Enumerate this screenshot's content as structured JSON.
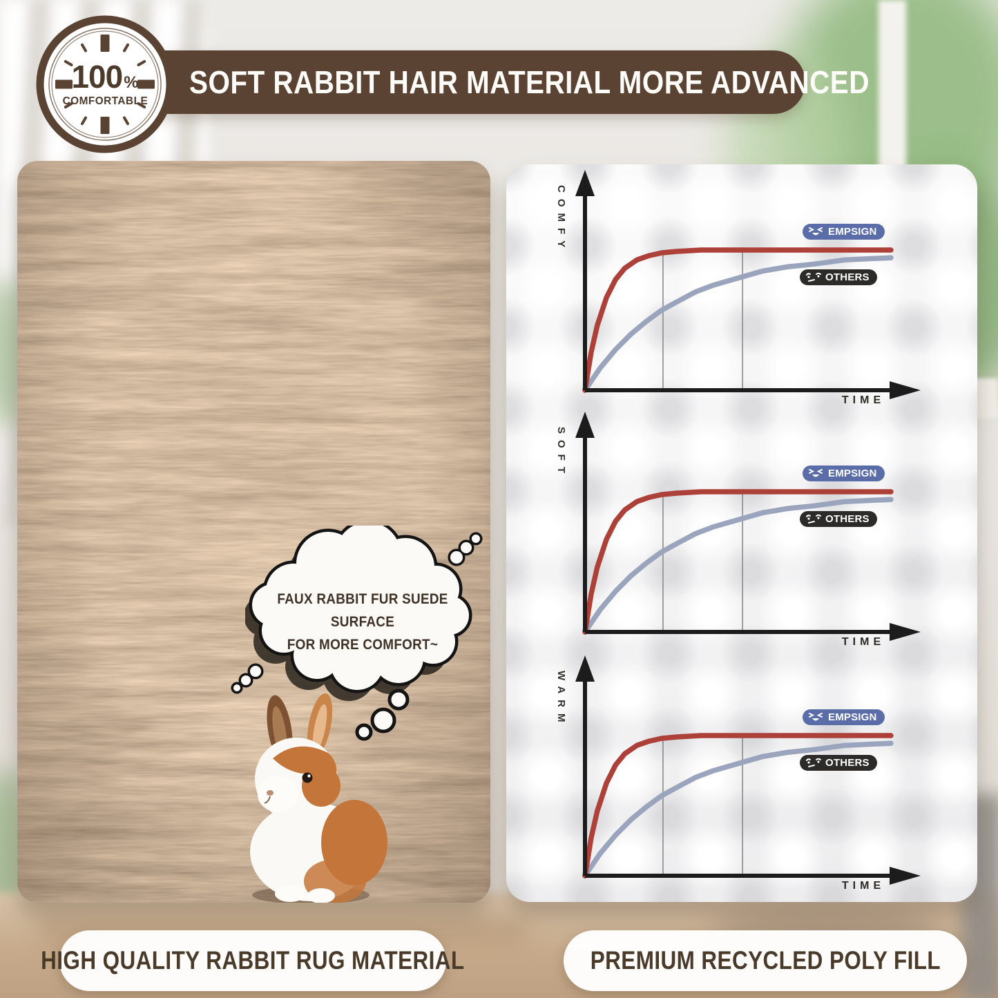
{
  "badge": {
    "percent": "100",
    "percent_sign": "%",
    "label": "COMFORTABLE",
    "color": "#4c3a2b"
  },
  "banner": {
    "title": "SOFT RABBIT HAIR MATERIAL MORE ADVANCED",
    "bg": "#5b4334",
    "text_color": "#ffffff"
  },
  "left_panel": {
    "bubble_line1": "FAUX RABBIT FUR SUEDE SURFACE",
    "bubble_line2": "FOR MORE COMFORT~",
    "caption": "HIGH QUALITY RABBIT RUG MATERIAL"
  },
  "right_panel": {
    "caption": "PREMIUM RECYCLED POLY FILL"
  },
  "colors": {
    "empsign_line": "#ad4038",
    "others_line": "#9aa5bd",
    "empsign_pill": "#5a6da8",
    "others_pill": "#2d2b2a",
    "axis": "#1c1c1c"
  },
  "chart_data": [
    {
      "type": "line",
      "title": "",
      "ylabel": "COMFY",
      "xlabel": "TIME",
      "x_range": [
        0,
        1
      ],
      "y_range": [
        0,
        1
      ],
      "legend_position": "right-on-plot",
      "gridlines_x": [
        0.255,
        0.515
      ],
      "series": [
        {
          "name": "EMPSIGN",
          "color": "#ad4038",
          "pill_bg": "#5a6da8",
          "points": [
            [
              0,
              0
            ],
            [
              0.02,
              0.27
            ],
            [
              0.04,
              0.46
            ],
            [
              0.07,
              0.66
            ],
            [
              0.1,
              0.79
            ],
            [
              0.13,
              0.87
            ],
            [
              0.17,
              0.93
            ],
            [
              0.21,
              0.96
            ],
            [
              0.25,
              0.98
            ],
            [
              0.3,
              0.99
            ],
            [
              0.38,
              1
            ],
            [
              0.55,
              1
            ],
            [
              0.75,
              1
            ],
            [
              1,
              1
            ]
          ]
        },
        {
          "name": "OTHERS",
          "color": "#9aa5bd",
          "pill_bg": "#2d2b2a",
          "points": [
            [
              0,
              0
            ],
            [
              0.05,
              0.16
            ],
            [
              0.1,
              0.29
            ],
            [
              0.15,
              0.4
            ],
            [
              0.2,
              0.49
            ],
            [
              0.25,
              0.57
            ],
            [
              0.3,
              0.63
            ],
            [
              0.36,
              0.7
            ],
            [
              0.42,
              0.75
            ],
            [
              0.5,
              0.8
            ],
            [
              0.58,
              0.85
            ],
            [
              0.66,
              0.88
            ],
            [
              0.75,
              0.9
            ],
            [
              0.85,
              0.93
            ],
            [
              1,
              0.945
            ]
          ]
        }
      ]
    },
    {
      "type": "line",
      "title": "",
      "ylabel": "SOFT",
      "xlabel": "TIME",
      "x_range": [
        0,
        1
      ],
      "y_range": [
        0,
        1
      ],
      "legend_position": "right-on-plot",
      "gridlines_x": [
        0.255,
        0.515
      ],
      "series": [
        {
          "name": "EMPSIGN",
          "color": "#ad4038",
          "pill_bg": "#5a6da8",
          "points": [
            [
              0,
              0
            ],
            [
              0.02,
              0.27
            ],
            [
              0.04,
              0.46
            ],
            [
              0.07,
              0.66
            ],
            [
              0.1,
              0.79
            ],
            [
              0.13,
              0.87
            ],
            [
              0.17,
              0.93
            ],
            [
              0.21,
              0.96
            ],
            [
              0.25,
              0.98
            ],
            [
              0.3,
              0.99
            ],
            [
              0.38,
              1
            ],
            [
              0.55,
              1
            ],
            [
              0.75,
              1
            ],
            [
              1,
              1
            ]
          ]
        },
        {
          "name": "OTHERS",
          "color": "#9aa5bd",
          "pill_bg": "#2d2b2a",
          "points": [
            [
              0,
              0
            ],
            [
              0.05,
              0.16
            ],
            [
              0.1,
              0.29
            ],
            [
              0.15,
              0.4
            ],
            [
              0.2,
              0.49
            ],
            [
              0.25,
              0.57
            ],
            [
              0.3,
              0.63
            ],
            [
              0.36,
              0.7
            ],
            [
              0.42,
              0.75
            ],
            [
              0.5,
              0.8
            ],
            [
              0.58,
              0.85
            ],
            [
              0.66,
              0.88
            ],
            [
              0.75,
              0.9
            ],
            [
              0.85,
              0.93
            ],
            [
              1,
              0.945
            ]
          ]
        }
      ]
    },
    {
      "type": "line",
      "title": "",
      "ylabel": "WARM",
      "xlabel": "TIME",
      "x_range": [
        0,
        1
      ],
      "y_range": [
        0,
        1
      ],
      "legend_position": "right-on-plot",
      "gridlines_x": [
        0.255,
        0.515
      ],
      "series": [
        {
          "name": "EMPSIGN",
          "color": "#ad4038",
          "pill_bg": "#5a6da8",
          "points": [
            [
              0,
              0
            ],
            [
              0.02,
              0.27
            ],
            [
              0.04,
              0.46
            ],
            [
              0.07,
              0.66
            ],
            [
              0.1,
              0.79
            ],
            [
              0.13,
              0.87
            ],
            [
              0.17,
              0.93
            ],
            [
              0.21,
              0.96
            ],
            [
              0.25,
              0.98
            ],
            [
              0.3,
              0.99
            ],
            [
              0.38,
              1
            ],
            [
              0.55,
              1
            ],
            [
              0.75,
              1
            ],
            [
              1,
              1
            ]
          ]
        },
        {
          "name": "OTHERS",
          "color": "#9aa5bd",
          "pill_bg": "#2d2b2a",
          "points": [
            [
              0,
              0
            ],
            [
              0.05,
              0.16
            ],
            [
              0.1,
              0.29
            ],
            [
              0.15,
              0.4
            ],
            [
              0.2,
              0.49
            ],
            [
              0.25,
              0.57
            ],
            [
              0.3,
              0.63
            ],
            [
              0.36,
              0.7
            ],
            [
              0.42,
              0.75
            ],
            [
              0.5,
              0.8
            ],
            [
              0.58,
              0.85
            ],
            [
              0.66,
              0.88
            ],
            [
              0.75,
              0.9
            ],
            [
              0.85,
              0.93
            ],
            [
              1,
              0.945
            ]
          ]
        }
      ]
    }
  ]
}
